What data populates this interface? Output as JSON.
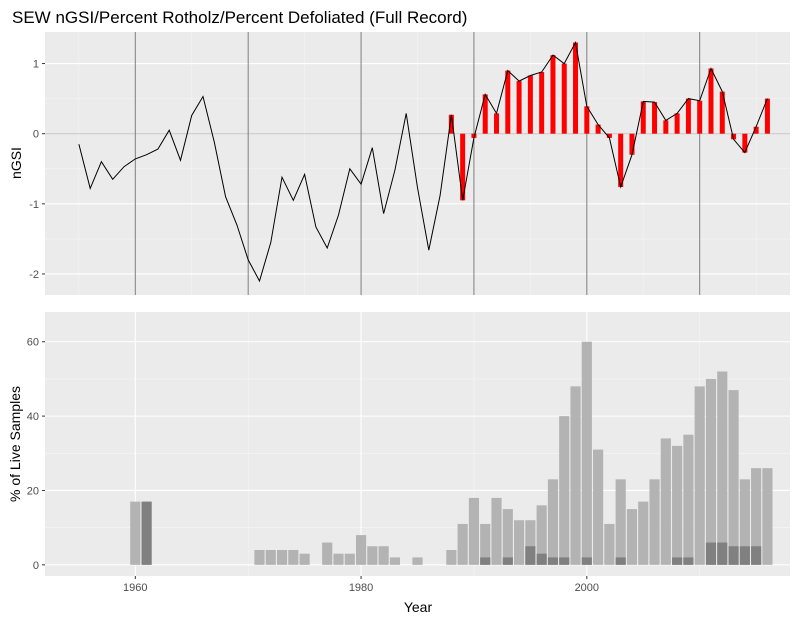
{
  "chart_data": [
    {
      "type": "line",
      "title": "SEW nGSI/Percent Rotholz/Percent Defoliated (Full Record)",
      "ylabel": "nGSI",
      "xlim": [
        1952,
        2018
      ],
      "ylim": [
        -2.3,
        1.45
      ],
      "yticks": [
        -2,
        -1,
        0,
        1
      ],
      "ytick_labels": [
        "-2",
        "-1",
        "0",
        "1"
      ],
      "vlines": [
        1960,
        1970,
        1980,
        1990,
        2000,
        2010
      ],
      "colors": {
        "line": "#000000",
        "bar": "#ff0000",
        "vline": "#7f7f7f",
        "panel": "#ebebeb"
      },
      "series": [
        {
          "kind": "line",
          "x": [
            1955,
            1956,
            1957,
            1958,
            1959,
            1960,
            1961,
            1962,
            1963,
            1964,
            1965,
            1966,
            1967,
            1968,
            1969,
            1970,
            1971,
            1972,
            1973,
            1974,
            1975,
            1976,
            1977,
            1978,
            1979,
            1980,
            1981,
            1982,
            1983,
            1984,
            1985,
            1986,
            1987,
            1988,
            1989,
            1990,
            1991,
            1992,
            1993,
            1994,
            1995,
            1996,
            1997,
            1998,
            1999,
            2000,
            2001,
            2002,
            2003,
            2004,
            2005,
            2006,
            2007,
            2008,
            2009,
            2010,
            2011,
            2012,
            2013,
            2014,
            2015,
            2016
          ],
          "values": [
            -0.15,
            -0.78,
            -0.4,
            -0.65,
            -0.47,
            -0.36,
            -0.3,
            -0.22,
            0.05,
            -0.38,
            0.26,
            0.53,
            -0.12,
            -0.9,
            -1.3,
            -1.8,
            -2.1,
            -1.55,
            -0.62,
            -0.95,
            -0.58,
            -1.33,
            -1.63,
            -1.16,
            -0.5,
            -0.72,
            -0.2,
            -1.14,
            -0.52,
            0.29,
            -0.77,
            -1.66,
            -0.88,
            0.27,
            -0.95,
            -0.06,
            0.56,
            0.29,
            0.9,
            0.75,
            0.83,
            0.88,
            1.12,
            1.0,
            1.3,
            0.39,
            0.13,
            -0.06,
            -0.76,
            -0.3,
            0.46,
            0.45,
            0.19,
            0.29,
            0.5,
            0.47,
            0.93,
            0.6,
            -0.08,
            -0.27,
            0.1,
            0.5
          ]
        },
        {
          "kind": "bar",
          "x": [
            1988,
            1989,
            1990,
            1991,
            1992,
            1993,
            1994,
            1995,
            1996,
            1997,
            1998,
            1999,
            2000,
            2001,
            2002,
            2003,
            2004,
            2005,
            2006,
            2007,
            2008,
            2009,
            2010,
            2011,
            2012,
            2013,
            2014,
            2015,
            2016
          ],
          "values": [
            0.27,
            -0.95,
            -0.06,
            0.56,
            0.29,
            0.9,
            0.75,
            0.83,
            0.88,
            1.12,
            1.0,
            1.3,
            0.39,
            0.13,
            -0.06,
            -0.76,
            -0.3,
            0.46,
            0.45,
            0.19,
            0.29,
            0.5,
            0.47,
            0.93,
            0.6,
            -0.08,
            -0.27,
            0.1,
            0.5
          ]
        }
      ]
    },
    {
      "type": "bar",
      "xlabel": "Year",
      "ylabel": "% of Live Samples",
      "xlim": [
        1952,
        2018
      ],
      "ylim": [
        -3,
        68
      ],
      "yticks": [
        0,
        20,
        40,
        60
      ],
      "ytick_labels": [
        "0",
        "20",
        "40",
        "60"
      ],
      "xticks": [
        1960,
        1980,
        2000
      ],
      "xtick_labels": [
        "1960",
        "1980",
        "2000"
      ],
      "colors": {
        "light": "#b3b3b3",
        "dark": "#808080",
        "panel": "#ebebeb"
      },
      "series": [
        {
          "kind": "light",
          "x": [
            1960,
            1961,
            1971,
            1972,
            1973,
            1974,
            1975,
            1977,
            1978,
            1979,
            1980,
            1981,
            1982,
            1983,
            1985,
            1988,
            1989,
            1990,
            1991,
            1992,
            1993,
            1994,
            1995,
            1996,
            1997,
            1998,
            1999,
            2000,
            2001,
            2002,
            2003,
            2004,
            2005,
            2006,
            2007,
            2008,
            2009,
            2010,
            2011,
            2012,
            2013,
            2014,
            2015,
            2016
          ],
          "values": [
            17,
            17,
            4,
            4,
            4,
            4,
            3,
            6,
            3,
            3,
            8,
            5,
            5,
            2,
            2,
            4,
            11,
            18,
            11,
            18,
            15,
            12,
            12,
            16,
            23,
            40,
            48,
            60,
            31,
            11,
            23,
            15,
            17,
            23,
            34,
            32,
            35,
            48,
            50,
            52,
            47,
            23,
            26,
            26
          ]
        },
        {
          "kind": "dark",
          "x": [
            1961,
            1991,
            1993,
            1995,
            1996,
            1997,
            1998,
            2000,
            2003,
            2008,
            2009,
            2011,
            2012,
            2013,
            2014,
            2015
          ],
          "values": [
            17,
            2,
            2,
            5,
            3,
            2,
            2,
            2,
            2,
            2,
            2,
            6,
            6,
            5,
            5,
            5
          ]
        }
      ]
    }
  ]
}
